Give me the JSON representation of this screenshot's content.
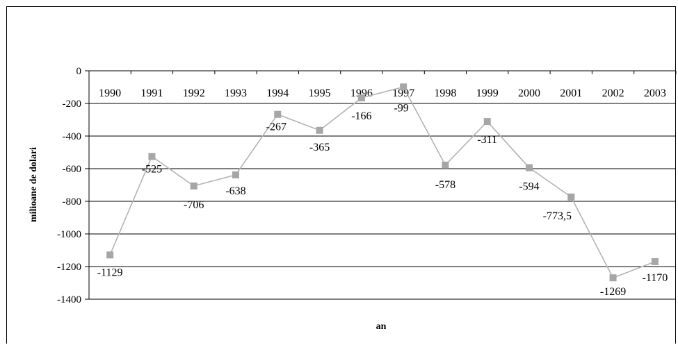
{
  "chart_data": {
    "type": "line",
    "categories": [
      "1990",
      "1991",
      "1992",
      "1993",
      "1994",
      "1995",
      "1996",
      "1997",
      "1998",
      "1999",
      "2000",
      "2001",
      "2002",
      "2003"
    ],
    "series": [
      {
        "values": [
          -1129,
          -525,
          -706,
          -638,
          -267,
          -365,
          -166,
          -99,
          -578,
          -311,
          -594,
          -773.5,
          -1269,
          -1170
        ]
      }
    ],
    "data_labels": [
      "-1129",
      "-525",
      "-706",
      "-638",
      "-267",
      "-365",
      "-166",
      "-99",
      "-578",
      "-311",
      "-594",
      "-773,5",
      "-1269",
      "-1170"
    ],
    "y_ticks": [
      "0",
      "-200",
      "-400",
      "-600",
      "-800",
      "-1000",
      "-1200",
      "-1400"
    ],
    "ylim": [
      -1400,
      0
    ],
    "xlabel": "an",
    "ylabel": "milioane de dolari",
    "grid": true,
    "colors": {
      "line": "#b3b3b3",
      "marker": "#a6a6a6",
      "grid": "#000000"
    }
  }
}
